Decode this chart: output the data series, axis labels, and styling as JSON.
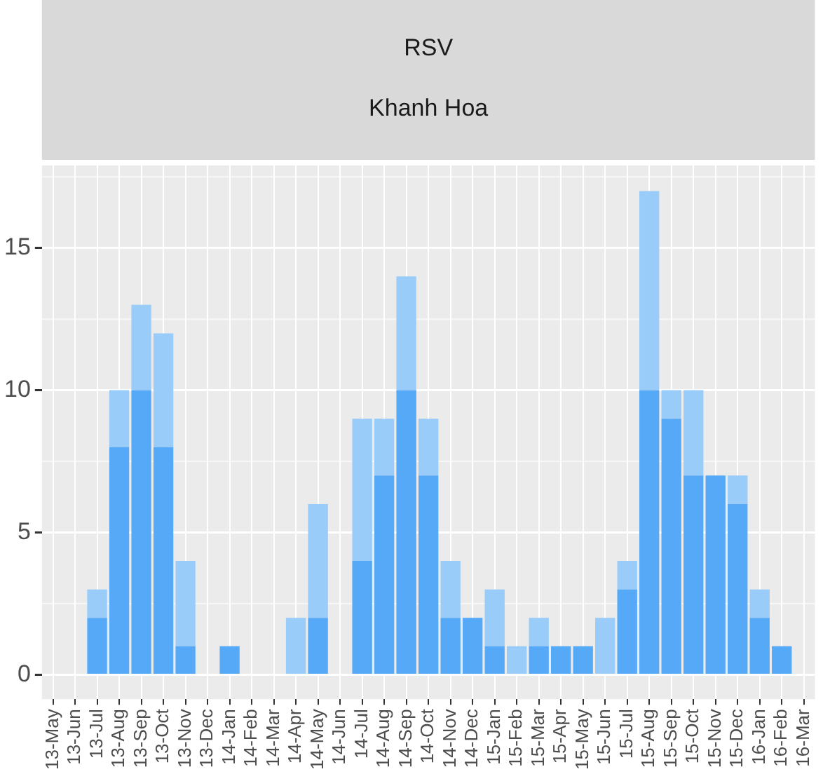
{
  "chart_data": {
    "type": "bar",
    "title": "RSV",
    "subtitle": "Khanh Hoa",
    "stacked": true,
    "categories": [
      "13-May",
      "13-Jun",
      "13-Jul",
      "13-Aug",
      "13-Sep",
      "13-Oct",
      "13-Nov",
      "13-Dec",
      "14-Jan",
      "14-Feb",
      "14-Mar",
      "14-Apr",
      "14-May",
      "14-Jun",
      "14-Jul",
      "14-Aug",
      "14-Sep",
      "14-Oct",
      "14-Nov",
      "14-Dec",
      "15-Jan",
      "15-Feb",
      "15-Mar",
      "15-Apr",
      "15-May",
      "15-Jun",
      "15-Jul",
      "15-Aug",
      "15-Sep",
      "15-Oct",
      "15-Nov",
      "15-Dec",
      "16-Jan",
      "16-Feb",
      "16-Mar"
    ],
    "series": [
      {
        "color": "#56a9f6",
        "values": [
          0,
          0,
          2,
          8,
          10,
          8,
          1,
          0,
          1,
          0,
          0,
          0,
          2,
          0,
          4,
          7,
          10,
          7,
          2,
          2,
          1,
          0,
          1,
          1,
          1,
          0,
          3,
          10,
          9,
          7,
          7,
          6,
          2,
          1,
          0
        ]
      },
      {
        "color": "#99ccf8",
        "values": [
          0,
          0,
          1,
          2,
          3,
          4,
          3,
          0,
          0,
          0,
          0,
          2,
          4,
          0,
          5,
          2,
          4,
          2,
          2,
          0,
          2,
          1,
          1,
          0,
          0,
          2,
          1,
          7,
          1,
          3,
          0,
          1,
          1,
          0,
          0
        ]
      }
    ],
    "ylim": [
      -0.86,
      17.9
    ],
    "yticks": [
      0,
      5,
      10,
      15
    ],
    "grid": true,
    "legend": false
  }
}
